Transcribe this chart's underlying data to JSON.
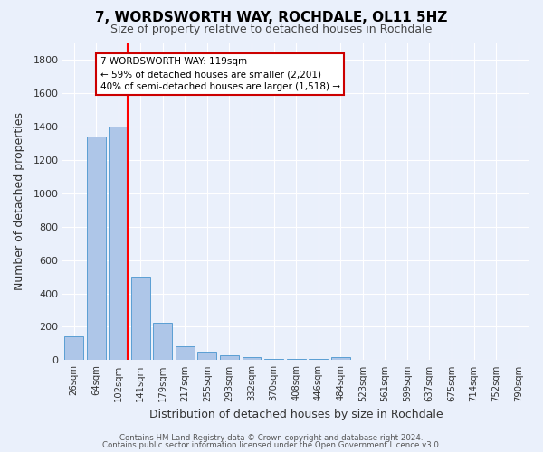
{
  "title": "7, WORDSWORTH WAY, ROCHDALE, OL11 5HZ",
  "subtitle": "Size of property relative to detached houses in Rochdale",
  "xlabel": "Distribution of detached houses by size in Rochdale",
  "ylabel": "Number of detached properties",
  "footer_line1": "Contains HM Land Registry data © Crown copyright and database right 2024.",
  "footer_line2": "Contains public sector information licensed under the Open Government Licence v3.0.",
  "categories": [
    "26sqm",
    "64sqm",
    "102sqm",
    "141sqm",
    "179sqm",
    "217sqm",
    "255sqm",
    "293sqm",
    "332sqm",
    "370sqm",
    "408sqm",
    "446sqm",
    "484sqm",
    "523sqm",
    "561sqm",
    "599sqm",
    "637sqm",
    "675sqm",
    "714sqm",
    "752sqm",
    "790sqm"
  ],
  "values": [
    145,
    1340,
    1400,
    500,
    225,
    85,
    50,
    30,
    20,
    10,
    10,
    10,
    20,
    0,
    0,
    0,
    0,
    0,
    0,
    0,
    0
  ],
  "bar_color": "#aec6e8",
  "bar_edge_color": "#5a9fd4",
  "background_color": "#eaf0fb",
  "grid_color": "#ffffff",
  "annotation_text": "7 WORDSWORTH WAY: 119sqm\n← 59% of detached houses are smaller (2,201)\n40% of semi-detached houses are larger (1,518) →",
  "annotation_box_color": "#ffffff",
  "annotation_box_edge": "#cc0000",
  "ylim": [
    0,
    1900
  ],
  "yticks": [
    0,
    200,
    400,
    600,
    800,
    1000,
    1200,
    1400,
    1600,
    1800
  ]
}
